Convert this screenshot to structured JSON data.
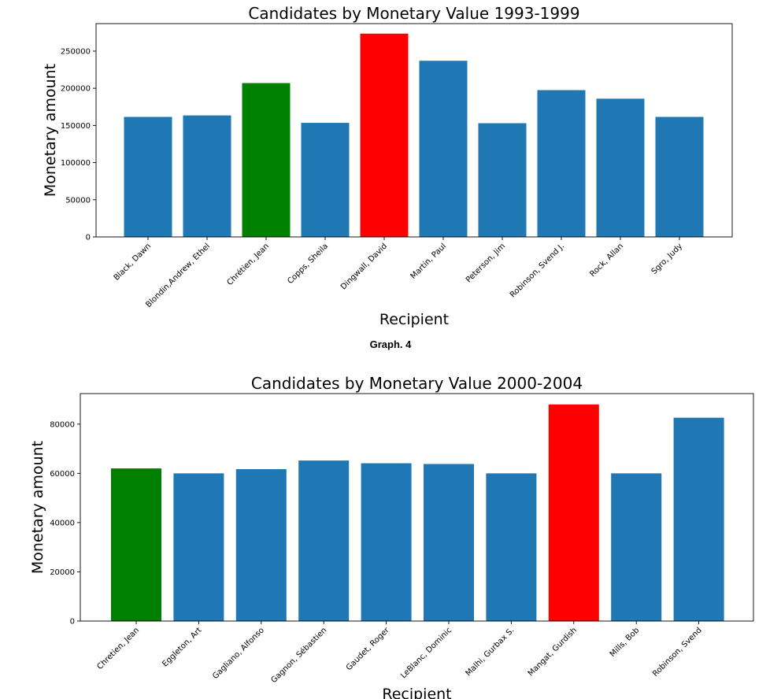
{
  "caption": "Graph. 4",
  "chart_data": [
    {
      "type": "bar",
      "title": "Candidates by Monetary Value 1993-1999",
      "xlabel": "Recipient",
      "ylabel": "Monetary amount",
      "categories": [
        "Black, Dawn",
        "Blondin,Andrew, Ethel",
        "Chrétien, Jean",
        "Copps, Sheila",
        "Dingwall, David",
        "Martin, Paul",
        "Peterson, Jim",
        "Robinson, Svend J.",
        "Rock, Allan",
        "Sgro, Judy"
      ],
      "values": [
        161500,
        163500,
        207000,
        153500,
        273500,
        237000,
        153000,
        197500,
        186000,
        161500
      ],
      "colors": [
        "#1f77b4",
        "#1f77b4",
        "#008000",
        "#1f77b4",
        "#ff0000",
        "#1f77b4",
        "#1f77b4",
        "#1f77b4",
        "#1f77b4",
        "#1f77b4"
      ],
      "yticks": [
        0,
        50000,
        100000,
        150000,
        200000,
        250000
      ],
      "ylim": [
        0,
        287000
      ]
    },
    {
      "type": "bar",
      "title": "Candidates by Monetary Value 2000-2004",
      "xlabel": "Recipient",
      "ylabel": "Monetary amount",
      "categories": [
        "Chretien, Jean",
        "Eggleton, Art",
        "Gagliano, Alfonso",
        "Gagnon, Sébastien",
        "Gaudet, Roger",
        "LeBlanc, Dominic",
        "Malhi, Gurbax S.",
        "Mangat, Gurdish",
        "Mills, Bob",
        "Robinson, Svend"
      ],
      "values": [
        62000,
        60000,
        61700,
        65200,
        64100,
        63800,
        60000,
        88000,
        60000,
        82600
      ],
      "colors": [
        "#008000",
        "#1f77b4",
        "#1f77b4",
        "#1f77b4",
        "#1f77b4",
        "#1f77b4",
        "#1f77b4",
        "#ff0000",
        "#1f77b4",
        "#1f77b4"
      ],
      "yticks": [
        0,
        20000,
        40000,
        60000,
        80000
      ],
      "ylim": [
        0,
        92400
      ]
    }
  ]
}
